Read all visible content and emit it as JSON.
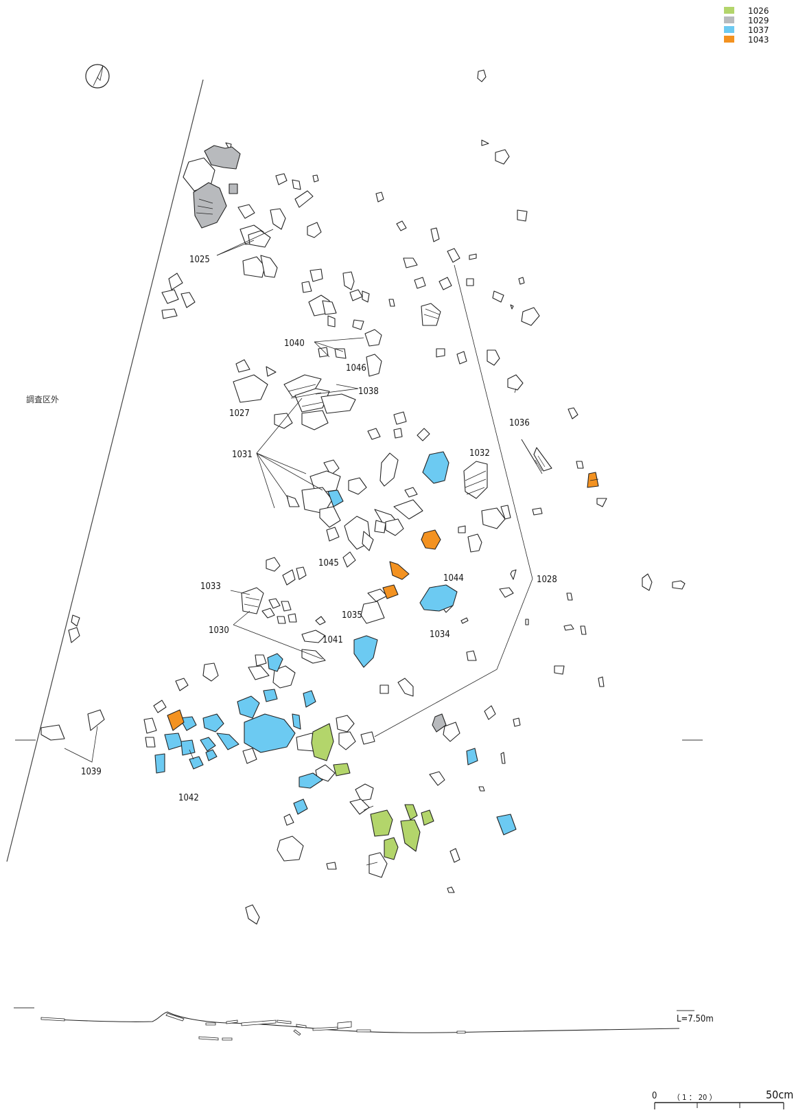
{
  "legend": [
    {
      "label": "1026",
      "color": "#b3d56b"
    },
    {
      "label": "1029",
      "color": "#b8babd"
    },
    {
      "label": "1037",
      "color": "#6ccaf2"
    },
    {
      "label": "1043",
      "color": "#f39221"
    }
  ],
  "survey_label": "調査区外",
  "level_label": "L=7.50m",
  "scale": {
    "zero": "0",
    "ratio": "（ 1 ： 20 ）",
    "end": "50cm"
  },
  "labels": [
    "1025",
    "1027",
    "1028",
    "1030",
    "1031",
    "1032",
    "1033",
    "1034",
    "1035",
    "1036",
    "1038",
    "1039",
    "1040",
    "1041",
    "1042",
    "1044",
    "1045",
    "1046"
  ],
  "north_icon": "north-arrow-icon"
}
